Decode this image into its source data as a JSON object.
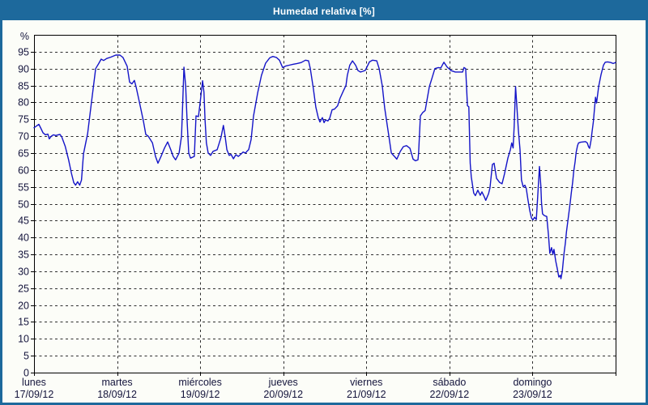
{
  "window": {
    "title": "Humedad relativa [%]"
  },
  "colors": {
    "frame": "#1d699c",
    "titlebar_bg": "#1d699c",
    "title_text": "#ffffff",
    "plot_bg": "#fcfdf8",
    "line": "#1414c8",
    "grid": "#2e2e2e",
    "axis": "#000000",
    "label": "#14143c"
  },
  "chart_data": {
    "type": "line",
    "title": "Humedad relativa [%]",
    "ylabel": "%",
    "ylim": [
      0,
      100
    ],
    "ytick_step": 5,
    "ytick_max_labeled": 95,
    "grid": true,
    "legend": "none",
    "x_span_days": 7,
    "x_unit": "hours from Monday 00:00",
    "x_categories": [
      {
        "day": "lunes",
        "date": "17/09/12"
      },
      {
        "day": "martes",
        "date": "18/09/12"
      },
      {
        "day": "miércoles",
        "date": "19/09/12"
      },
      {
        "day": "jueves",
        "date": "20/09/12"
      },
      {
        "day": "viernes",
        "date": "21/09/12"
      },
      {
        "day": "sábado",
        "date": "22/09/12"
      },
      {
        "day": "domingo",
        "date": "23/09/12"
      }
    ],
    "series": [
      {
        "name": "Humedad relativa",
        "unit": "%",
        "points": [
          [
            0,
            72.5
          ],
          [
            0.7,
            73
          ],
          [
            1.4,
            73.5
          ],
          [
            2,
            72.3
          ],
          [
            2.6,
            71
          ],
          [
            3.3,
            70.4
          ],
          [
            4,
            70.6
          ],
          [
            4.4,
            69.2
          ],
          [
            5,
            70
          ],
          [
            5.6,
            70.4
          ],
          [
            6.3,
            70.2
          ],
          [
            7,
            70.4
          ],
          [
            7.5,
            70.5
          ],
          [
            8,
            69.8
          ],
          [
            9,
            67
          ],
          [
            10,
            63
          ],
          [
            10.8,
            59
          ],
          [
            11.5,
            56.2
          ],
          [
            12,
            55.5
          ],
          [
            12.6,
            56.5
          ],
          [
            13.2,
            55.5
          ],
          [
            13.7,
            57
          ],
          [
            14.3,
            64.8
          ],
          [
            15.5,
            70.8
          ],
          [
            16.6,
            80
          ],
          [
            17.8,
            90
          ],
          [
            18.7,
            91.5
          ],
          [
            19.4,
            92.8
          ],
          [
            20.1,
            92.4
          ],
          [
            21,
            93
          ],
          [
            22.2,
            93.4
          ],
          [
            23.6,
            94
          ],
          [
            24.8,
            94
          ],
          [
            25.7,
            93.3
          ],
          [
            26.9,
            90.7
          ],
          [
            27.6,
            86
          ],
          [
            28.3,
            85.5
          ],
          [
            29,
            86.5
          ],
          [
            29.5,
            84.5
          ],
          [
            30.4,
            80.3
          ],
          [
            31.6,
            74.4
          ],
          [
            32.3,
            70.5
          ],
          [
            33,
            70
          ],
          [
            34.2,
            68
          ],
          [
            35.1,
            64
          ],
          [
            35.8,
            62
          ],
          [
            36.7,
            64
          ],
          [
            37.7,
            66.5
          ],
          [
            38.6,
            68.3
          ],
          [
            39.5,
            66
          ],
          [
            40.2,
            64
          ],
          [
            40.9,
            63
          ],
          [
            41.9,
            65
          ],
          [
            42.6,
            70
          ],
          [
            42.9,
            78
          ],
          [
            43.3,
            90.4
          ],
          [
            43.8,
            85
          ],
          [
            44.2,
            75
          ],
          [
            44.7,
            65
          ],
          [
            45.2,
            63.5
          ],
          [
            46.3,
            64
          ],
          [
            46.8,
            76
          ],
          [
            47.5,
            75.8
          ],
          [
            48,
            80
          ],
          [
            48.7,
            86.4
          ],
          [
            49.1,
            83
          ],
          [
            49.4,
            75
          ],
          [
            49.8,
            68
          ],
          [
            50.3,
            65
          ],
          [
            51,
            64.3
          ],
          [
            51.7,
            65.5
          ],
          [
            52.9,
            66
          ],
          [
            54,
            69.6
          ],
          [
            54.7,
            73.2
          ],
          [
            55.2,
            70
          ],
          [
            55.7,
            66
          ],
          [
            56.4,
            64.3
          ],
          [
            56.9,
            64.6
          ],
          [
            57.6,
            63.3
          ],
          [
            58.3,
            64.5
          ],
          [
            59,
            64
          ],
          [
            59.7,
            64.6
          ],
          [
            60.4,
            65.3
          ],
          [
            61.1,
            65
          ],
          [
            61.5,
            65.5
          ],
          [
            62,
            66
          ],
          [
            62.7,
            69
          ],
          [
            63.4,
            76
          ],
          [
            64.6,
            82.8
          ],
          [
            65.7,
            88
          ],
          [
            66.9,
            91.6
          ],
          [
            68.1,
            93.2
          ],
          [
            69,
            93.6
          ],
          [
            70,
            93.3
          ],
          [
            70.9,
            92.5
          ],
          [
            71.8,
            90.3
          ],
          [
            72.8,
            90.8
          ],
          [
            73.7,
            91
          ],
          [
            74.9,
            91.3
          ],
          [
            76,
            91.5
          ],
          [
            77.2,
            91.8
          ],
          [
            78.4,
            92.5
          ],
          [
            79.3,
            92.3
          ],
          [
            79.8,
            90
          ],
          [
            80.7,
            84
          ],
          [
            81.4,
            78.6
          ],
          [
            82.1,
            75.5
          ],
          [
            82.6,
            74.2
          ],
          [
            83.3,
            75.5
          ],
          [
            83.8,
            74
          ],
          [
            84.2,
            74.8
          ],
          [
            84.9,
            74.5
          ],
          [
            85.4,
            75.3
          ],
          [
            86.1,
            77.8
          ],
          [
            86.8,
            78
          ],
          [
            87.7,
            79
          ],
          [
            88.4,
            81.2
          ],
          [
            89.4,
            83.5
          ],
          [
            90.1,
            85
          ],
          [
            90.5,
            88
          ],
          [
            91.2,
            91
          ],
          [
            92,
            92.3
          ],
          [
            92.9,
            91
          ],
          [
            93.6,
            89.4
          ],
          [
            94.3,
            89
          ],
          [
            95,
            89.2
          ],
          [
            95.7,
            89.5
          ],
          [
            96.2,
            90.5
          ],
          [
            96.9,
            92
          ],
          [
            97.8,
            92.5
          ],
          [
            99,
            92.3
          ],
          [
            99.7,
            90
          ],
          [
            100.6,
            85
          ],
          [
            101.3,
            78.4
          ],
          [
            102,
            73.5
          ],
          [
            102.5,
            70
          ],
          [
            103.2,
            65
          ],
          [
            104.3,
            63.8
          ],
          [
            104.8,
            63.2
          ],
          [
            105.8,
            65.5
          ],
          [
            106.7,
            66.9
          ],
          [
            107.6,
            67.2
          ],
          [
            108.6,
            66.4
          ],
          [
            109.5,
            63.2
          ],
          [
            110.2,
            62.7
          ],
          [
            110.9,
            63
          ],
          [
            111.1,
            65
          ],
          [
            111.6,
            76
          ],
          [
            112.3,
            77
          ],
          [
            113,
            77.6
          ],
          [
            114.2,
            84.7
          ],
          [
            114.9,
            87
          ],
          [
            115.8,
            90
          ],
          [
            116.8,
            90.3
          ],
          [
            117.5,
            90.2
          ],
          [
            118.4,
            91.9
          ],
          [
            119.3,
            90.5
          ],
          [
            120.5,
            89.4
          ],
          [
            121.7,
            89
          ],
          [
            122.8,
            89
          ],
          [
            123.8,
            89
          ],
          [
            124.2,
            90.3
          ],
          [
            124.7,
            90
          ],
          [
            125.2,
            79
          ],
          [
            125.6,
            78.7
          ],
          [
            126,
            62
          ],
          [
            126.3,
            58
          ],
          [
            127,
            53.2
          ],
          [
            127.5,
            52.4
          ],
          [
            128.2,
            54
          ],
          [
            128.9,
            52.5
          ],
          [
            129.4,
            53.5
          ],
          [
            130.1,
            52
          ],
          [
            130.5,
            51
          ],
          [
            131.3,
            53
          ],
          [
            131.7,
            54.7
          ],
          [
            132.4,
            61.6
          ],
          [
            132.9,
            62
          ],
          [
            133.6,
            57.5
          ],
          [
            134.5,
            56.3
          ],
          [
            135.2,
            55.9
          ],
          [
            135.9,
            58.8
          ],
          [
            136.9,
            63.6
          ],
          [
            137.6,
            66
          ],
          [
            138,
            68
          ],
          [
            138.4,
            66.5
          ],
          [
            138.7,
            73
          ],
          [
            139.1,
            84.7
          ],
          [
            139.4,
            80
          ],
          [
            139.9,
            72
          ],
          [
            140.4,
            66
          ],
          [
            140.8,
            57
          ],
          [
            141.3,
            55
          ],
          [
            141.8,
            55.5
          ],
          [
            142.2,
            54.5
          ],
          [
            142.7,
            51
          ],
          [
            143.2,
            48
          ],
          [
            143.7,
            45.8
          ],
          [
            144.1,
            45.2
          ],
          [
            144.6,
            46
          ],
          [
            145.1,
            45.3
          ],
          [
            145.5,
            52
          ],
          [
            146,
            61
          ],
          [
            146.4,
            55.3
          ],
          [
            146.6,
            50.4
          ],
          [
            146.9,
            47
          ],
          [
            147.4,
            46.5
          ],
          [
            148.1,
            46.2
          ],
          [
            148.6,
            40.8
          ],
          [
            149,
            35.3
          ],
          [
            149.5,
            37
          ],
          [
            149.9,
            35
          ],
          [
            150.2,
            36.5
          ],
          [
            150.7,
            33
          ],
          [
            151.1,
            31
          ],
          [
            151.6,
            28.3
          ],
          [
            152,
            28.8
          ],
          [
            152.2,
            27.8
          ],
          [
            152.6,
            30
          ],
          [
            152.8,
            32
          ],
          [
            153.1,
            35.2
          ],
          [
            153.5,
            38.4
          ],
          [
            153.8,
            41.6
          ],
          [
            154.2,
            44.8
          ],
          [
            154.5,
            47.2
          ],
          [
            154.9,
            50.4
          ],
          [
            155.2,
            53.2
          ],
          [
            155.6,
            56.4
          ],
          [
            155.9,
            59.6
          ],
          [
            156.3,
            62.4
          ],
          [
            156.6,
            65.2
          ],
          [
            157,
            67.2
          ],
          [
            157.3,
            68
          ],
          [
            157.9,
            68.2
          ],
          [
            158.6,
            68.3
          ],
          [
            159.3,
            68.4
          ],
          [
            159.8,
            68
          ],
          [
            160.2,
            66.8
          ],
          [
            160.5,
            66.4
          ],
          [
            160.9,
            68.8
          ],
          [
            161.2,
            71.2
          ],
          [
            161.6,
            74.4
          ],
          [
            161.9,
            78
          ],
          [
            162.2,
            81.5
          ],
          [
            162.5,
            79.8
          ],
          [
            163.1,
            84.7
          ],
          [
            163.8,
            88.3
          ],
          [
            164.5,
            91
          ],
          [
            165,
            91.9
          ],
          [
            165.7,
            92
          ],
          [
            166.6,
            91.8
          ],
          [
            167.3,
            91.5
          ],
          [
            168,
            91.8
          ]
        ]
      }
    ]
  }
}
